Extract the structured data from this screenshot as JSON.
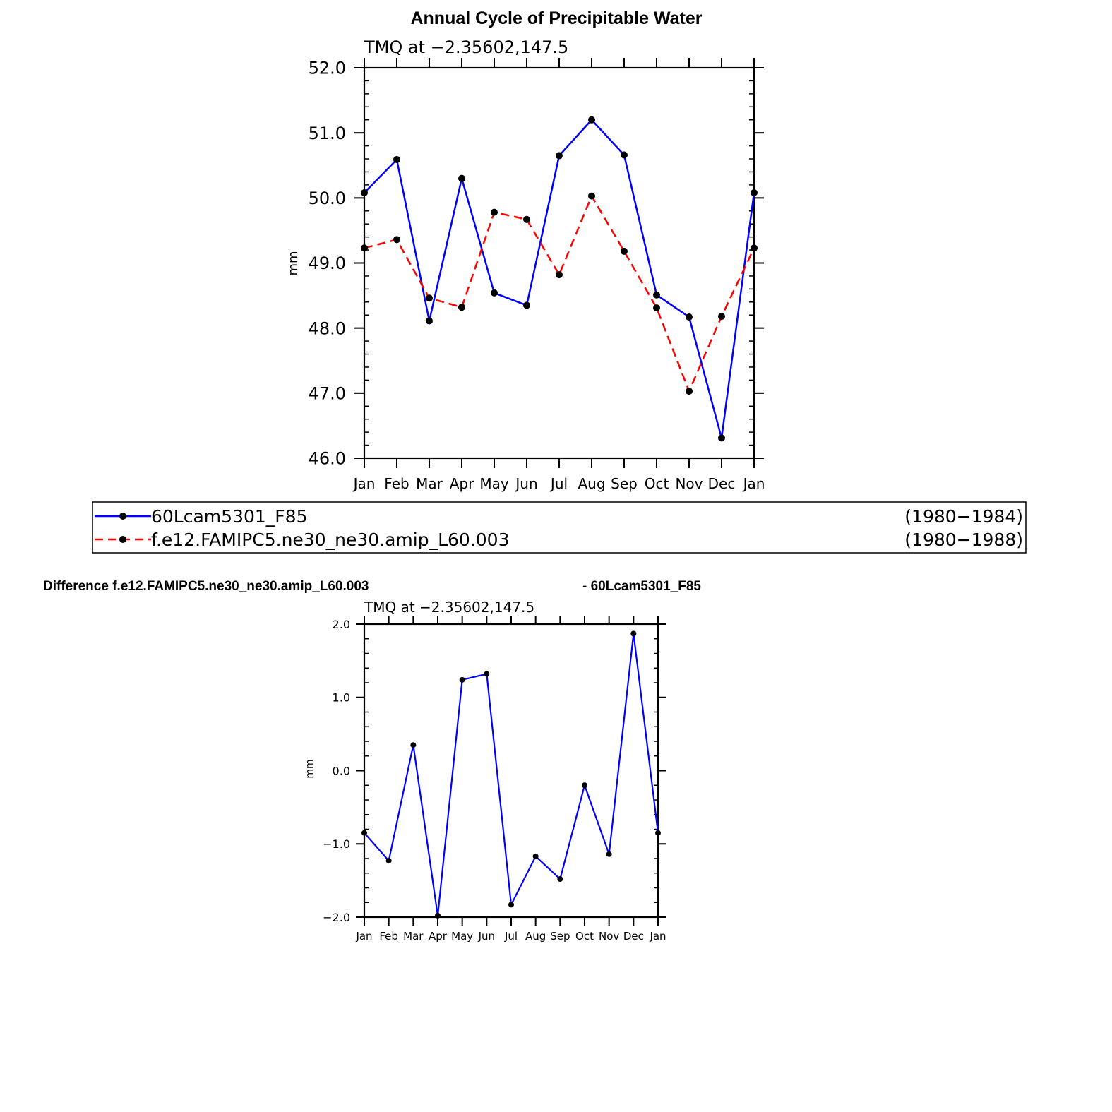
{
  "main_title": "Annual Cycle of Precipitable Water",
  "difference_title_left": "Difference f.e12.FAMIPC5.ne30_ne30.amip_L60.003",
  "difference_title_right": "- 60Lcam5301_F85",
  "chart_data": [
    {
      "type": "line",
      "subtitle": "TMQ  at  −2.35602,147.5",
      "ylabel": "mm",
      "xlabel": "",
      "ylim": [
        46.0,
        52.0
      ],
      "yticks": [
        "46.0",
        "47.0",
        "48.0",
        "49.0",
        "50.0",
        "51.0",
        "52.0"
      ],
      "categories": [
        "Jan",
        "Feb",
        "Mar",
        "Apr",
        "May",
        "Jun",
        "Jul",
        "Aug",
        "Sep",
        "Oct",
        "Nov",
        "Dec",
        "Jan"
      ],
      "grid": false,
      "series": [
        {
          "name": "60Lcam5301_F85",
          "period": "(1980−1984)",
          "color": "#0000ff",
          "dash": "solid",
          "values": [
            50.08,
            50.59,
            48.11,
            50.3,
            48.54,
            48.35,
            50.65,
            51.2,
            50.66,
            48.51,
            48.17,
            46.31,
            50.08
          ]
        },
        {
          "name": "f.e12.FAMIPC5.ne30_ne30.amip_L60.003",
          "period": "(1980−1988)",
          "color": "#ff0000",
          "dash": "dashed",
          "values": [
            49.23,
            49.36,
            48.46,
            48.32,
            49.78,
            49.67,
            48.82,
            50.03,
            49.18,
            48.31,
            47.03,
            48.18,
            49.23
          ]
        }
      ],
      "legend_position": "below"
    },
    {
      "type": "line",
      "subtitle": "TMQ  at  −2.35602,147.5",
      "ylabel": "mm",
      "xlabel": "",
      "ylim": [
        -2.0,
        2.0
      ],
      "yticks": [
        "−2.0",
        "−1.0",
        "0.0",
        "1.0",
        "2.0"
      ],
      "categories": [
        "Jan",
        "Feb",
        "Mar",
        "Apr",
        "May",
        "Jun",
        "Jul",
        "Aug",
        "Sep",
        "Oct",
        "Nov",
        "Dec",
        "Jan"
      ],
      "grid": false,
      "series": [
        {
          "color": "#0000ff",
          "dash": "solid",
          "values": [
            -0.85,
            -1.23,
            0.35,
            -1.98,
            1.24,
            1.32,
            -1.83,
            -1.17,
            -1.48,
            -0.2,
            -1.14,
            1.87,
            -0.85
          ]
        }
      ]
    }
  ]
}
